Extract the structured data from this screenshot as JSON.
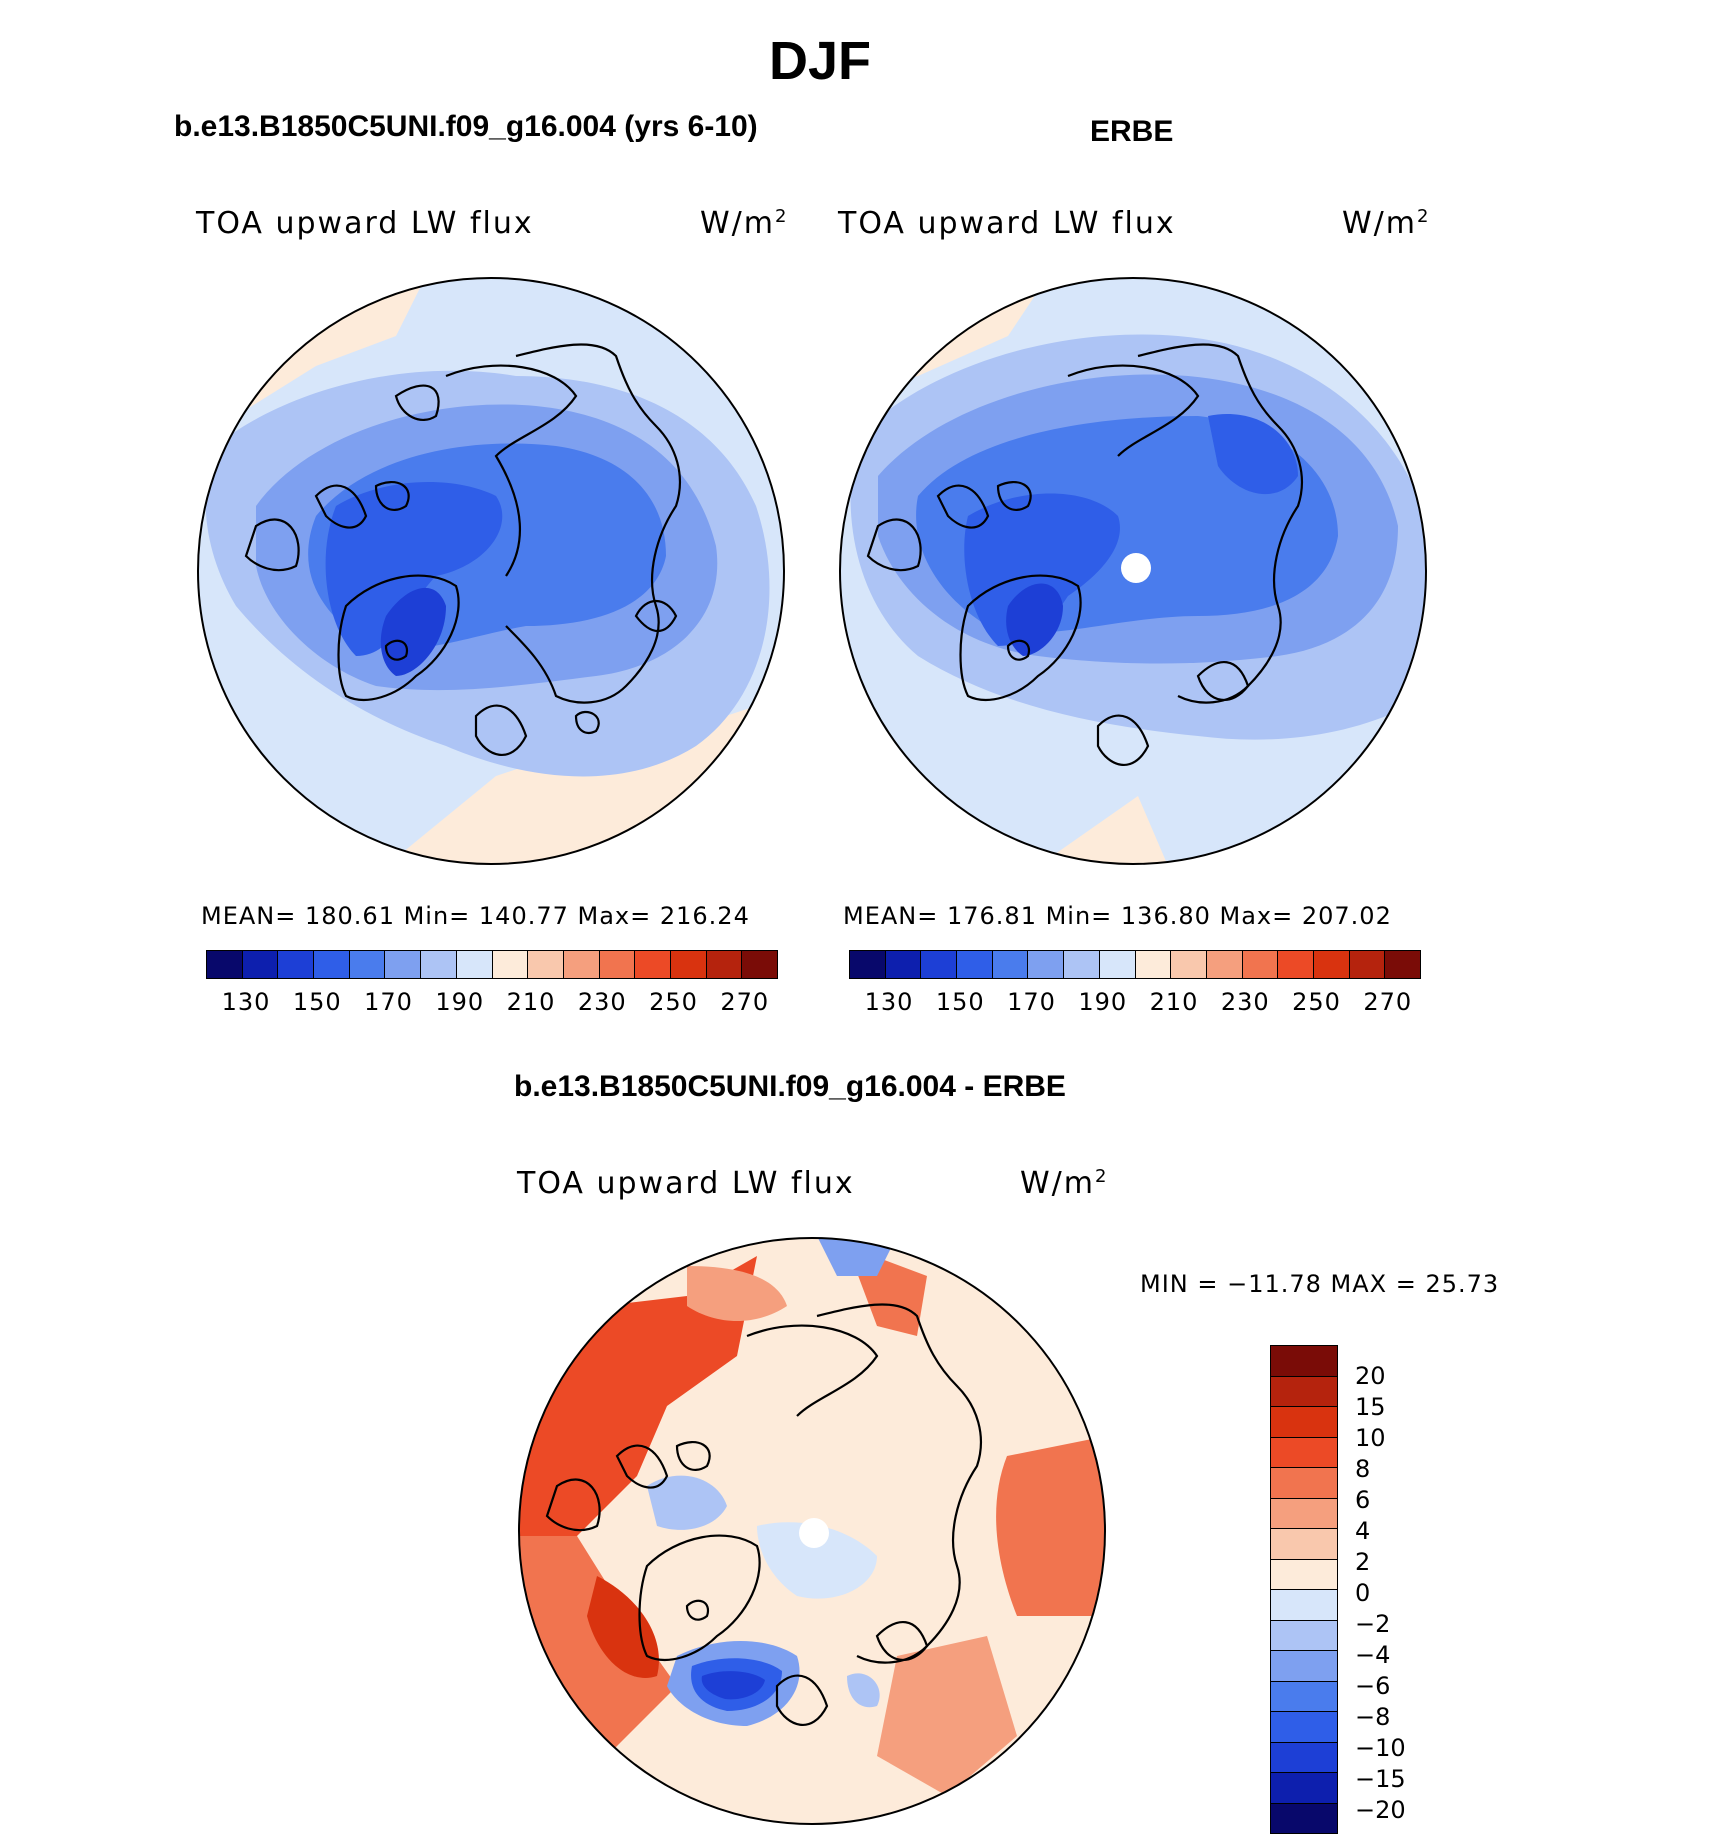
{
  "figure": {
    "title": "DJF",
    "diff_title": "b.e13.B1850C5UNI.f09_g16.004 - ERBE"
  },
  "panels": [
    {
      "title": "b.e13.B1850C5UNI.f09_g16.004 (yrs 6-10)",
      "subtitle_left": "TOA upward LW flux",
      "units_base": "W/m",
      "units_sup": "2",
      "stats": "MEAN= 180.61   Min= 140.77   Max= 216.24",
      "colorbar_ticks": [
        "130",
        "150",
        "170",
        "190",
        "210",
        "230",
        "250",
        "270"
      ]
    },
    {
      "title": "ERBE",
      "subtitle_left": "TOA upward LW flux",
      "units_base": "W/m",
      "units_sup": "2",
      "stats": "MEAN= 176.81   Min= 136.80   Max= 207.02",
      "colorbar_ticks": [
        "130",
        "150",
        "170",
        "190",
        "210",
        "230",
        "250",
        "270"
      ]
    },
    {
      "title": "b.e13.B1850C5UNI.f09_g16.004 - ERBE",
      "subtitle_left": "TOA upward LW flux",
      "units_base": "W/m",
      "units_sup": "2",
      "stats": "MIN = −11.78 MAX =   25.73",
      "colorbar_ticks": [
        "20",
        "15",
        "10",
        "8",
        "6",
        "4",
        "2",
        "0",
        "−2",
        "−4",
        "−6",
        "−8",
        "−10",
        "−15",
        "−20"
      ]
    }
  ],
  "colors": {
    "abs_scale": [
      "#08086b",
      "#0d1fae",
      "#1d3fd6",
      "#2f5ee8",
      "#4a7ced",
      "#7ea0f0",
      "#adc4f5",
      "#d7e6fa",
      "#fdebda",
      "#f9c8ad",
      "#f59f7e",
      "#f1744f",
      "#ec4a26",
      "#d9330f",
      "#b5230d",
      "#7a0c07"
    ],
    "diff_scale": [
      "#7a0c07",
      "#b5230d",
      "#d9330f",
      "#ec4a26",
      "#f1744f",
      "#f59f7e",
      "#f9c8ad",
      "#fdebda",
      "#d7e6fa",
      "#adc4f5",
      "#7ea0f0",
      "#4a7ced",
      "#2f5ee8",
      "#1d3fd6",
      "#0d1fae",
      "#08086b"
    ]
  }
}
